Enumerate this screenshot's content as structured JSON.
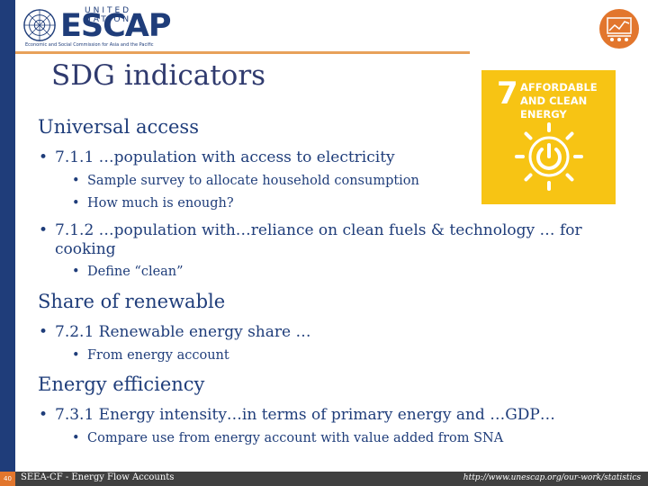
{
  "logo": {
    "un": "UNITED NATIONS",
    "name": "ESCAP",
    "subtitle": "Economic and Social Commission for Asia and the Pacific"
  },
  "title": "SDG indicators",
  "sdg_tile": {
    "number": "7",
    "label": "AFFORDABLE AND CLEAN ENERGY",
    "color": "#f7c414"
  },
  "sections": [
    {
      "heading": "Universal access",
      "items": [
        {
          "text": "7.1.1 …population with access to electricity",
          "sub": [
            "Sample survey to allocate household consumption",
            "How much is enough?"
          ]
        },
        {
          "text": "7.1.2 …population with…reliance on clean fuels & technology … for",
          "text2": "cooking",
          "sub": [
            "Define “clean”"
          ]
        }
      ]
    },
    {
      "heading": "Share of renewable",
      "items": [
        {
          "text": "7.2.1 Renewable energy share …",
          "sub": [
            "From energy account"
          ]
        }
      ]
    },
    {
      "heading": "Energy efficiency",
      "items": [
        {
          "text": "7.3.1 Energy intensity…in terms of primary energy and …GDP…",
          "sub": [
            "Compare use from energy account with value added from SNA"
          ]
        }
      ]
    }
  ],
  "footer": {
    "page": "40",
    "left": "SEEA-CF - Energy Flow Accounts",
    "right": "http://www.unescap.org/our-work/statistics"
  },
  "colors": {
    "accent": "#e2762d",
    "brand": "#1f3d7a",
    "footer": "#404040"
  },
  "icons": [
    "un-emblem-icon",
    "statistics-chart-icon",
    "power-button-sun-icon"
  ]
}
